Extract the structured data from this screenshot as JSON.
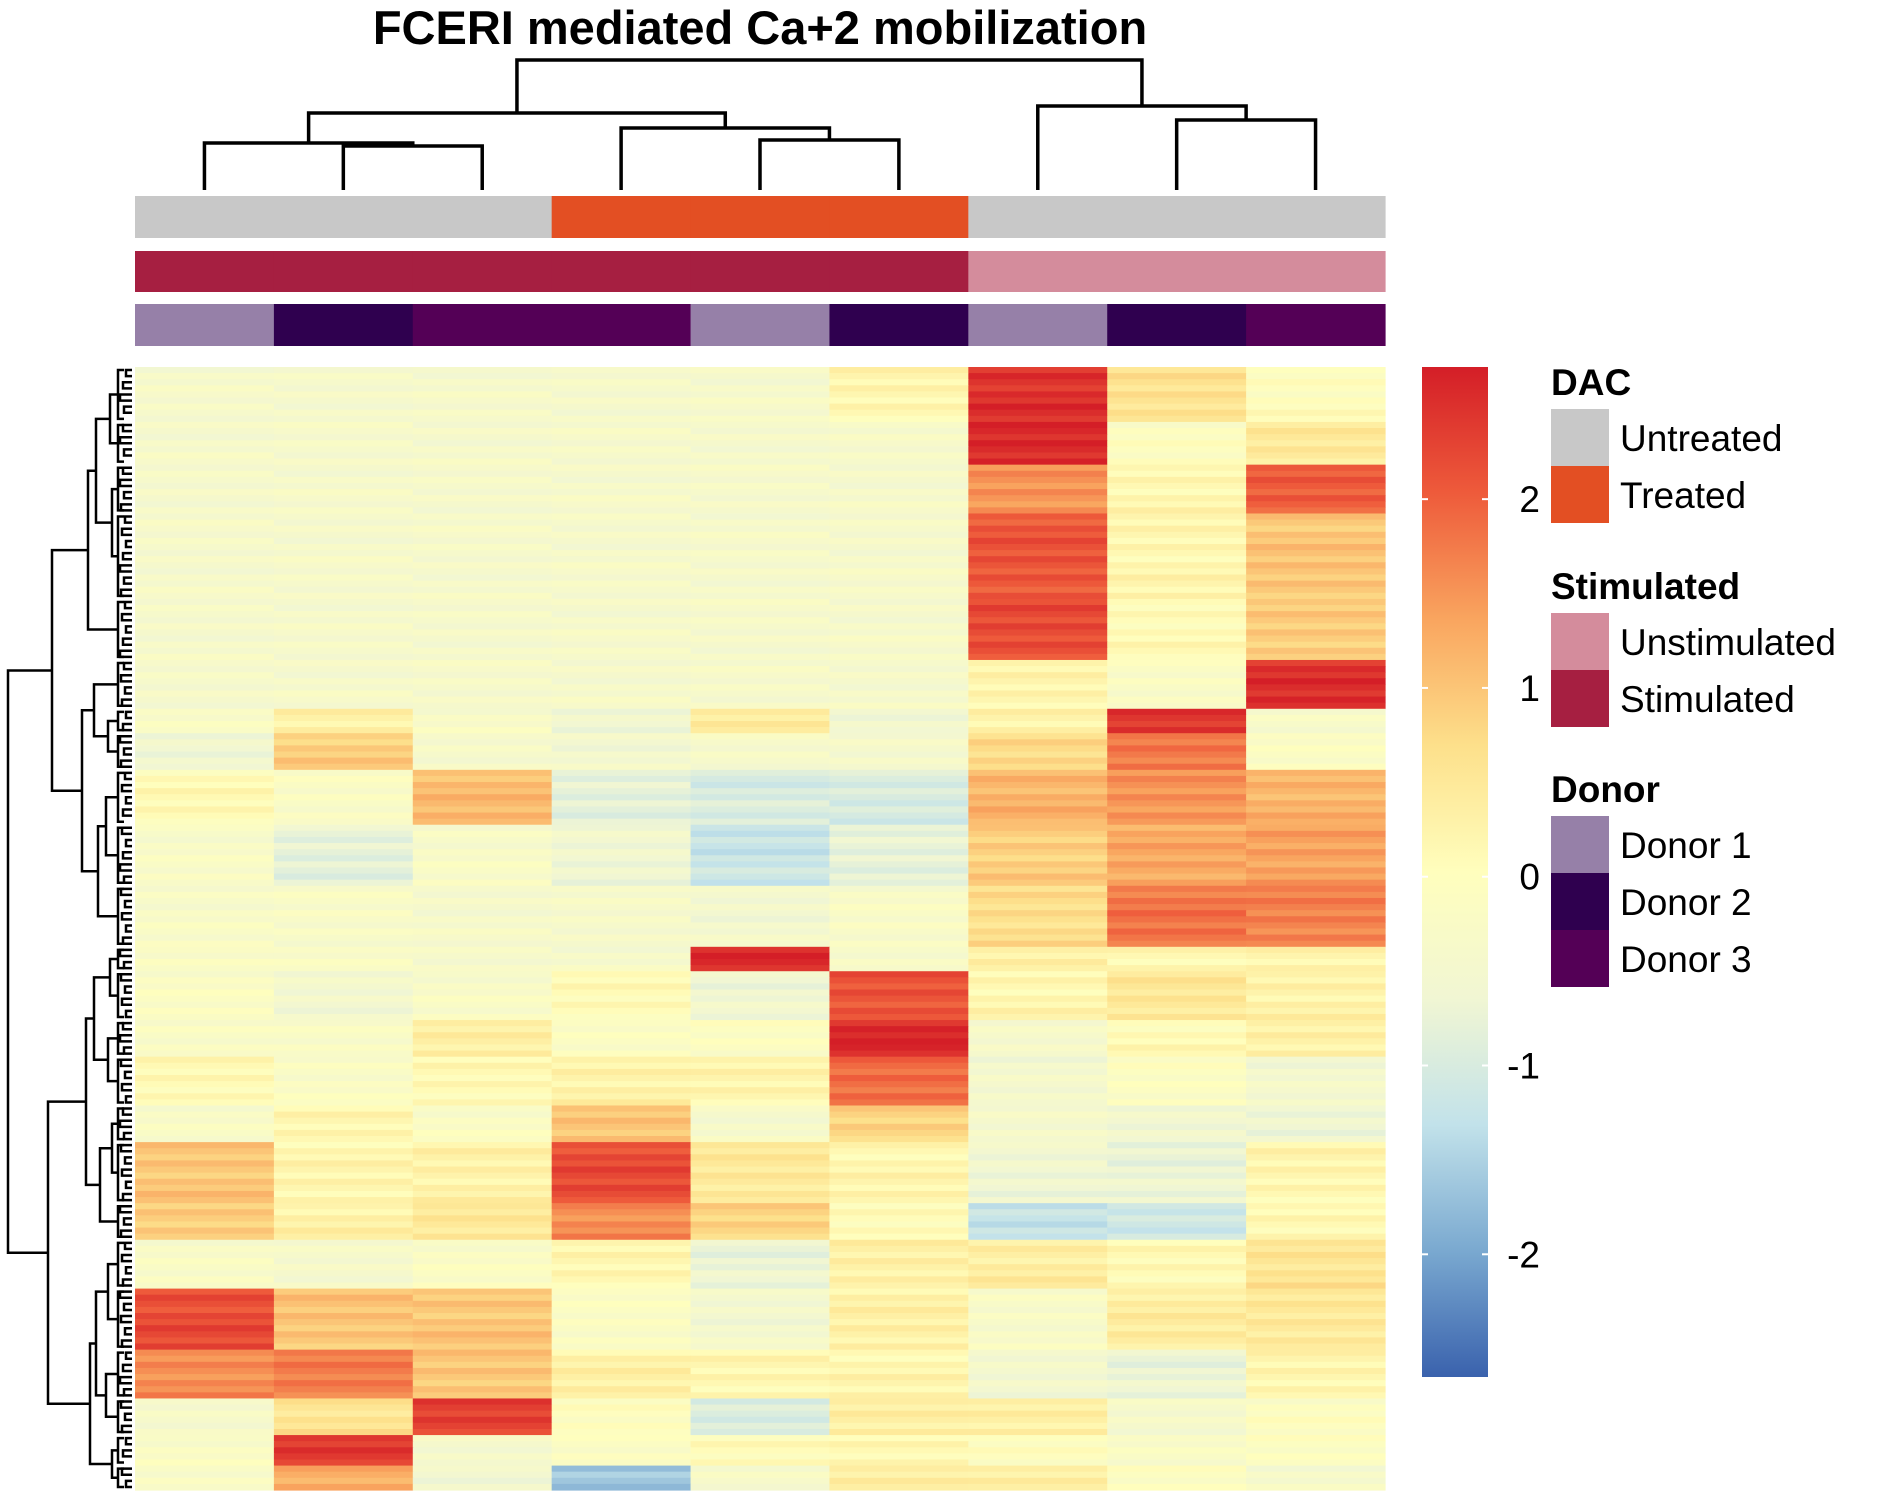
{
  "chart_data": {
    "type": "heatmap",
    "title": "FCERI mediated Ca+2 mobilization",
    "column_annotations": {
      "DAC": [
        "Untreated",
        "Untreated",
        "Untreated",
        "Treated",
        "Treated",
        "Treated",
        "Untreated",
        "Untreated",
        "Untreated"
      ],
      "Stimulated": [
        "Stimulated",
        "Stimulated",
        "Stimulated",
        "Stimulated",
        "Stimulated",
        "Stimulated",
        "Unstimulated",
        "Unstimulated",
        "Unstimulated"
      ],
      "Donor": [
        "Donor 1",
        "Donor 2",
        "Donor 3",
        "Donor 3",
        "Donor 1",
        "Donor 2",
        "Donor 1",
        "Donor 2",
        "Donor 3"
      ]
    },
    "legend": {
      "groups": [
        {
          "title": "DAC",
          "items": [
            {
              "label": "Untreated",
              "color": "#c8c8c8"
            },
            {
              "label": "Treated",
              "color": "#e34f23"
            }
          ]
        },
        {
          "title": "Stimulated",
          "items": [
            {
              "label": "Unstimulated",
              "color": "#d48c9c"
            },
            {
              "label": "Stimulated",
              "color": "#a61f41"
            }
          ]
        },
        {
          "title": "Donor",
          "items": [
            {
              "label": "Donor 1",
              "color": "#9680a8"
            },
            {
              "label": "Donor 2",
              "color": "#2f004f"
            },
            {
              "label": "Donor 3",
              "color": "#540056"
            }
          ]
        }
      ],
      "colorbar": {
        "ticks": [
          {
            "value": 2,
            "label": "2"
          },
          {
            "value": 1,
            "label": "1"
          },
          {
            "value": 0,
            "label": "0"
          },
          {
            "value": -1,
            "label": "-1"
          },
          {
            "value": -2,
            "label": "-2"
          }
        ],
        "range": [
          -2.65,
          2.7
        ],
        "colors": [
          "#3a62ad",
          "#7aa9d0",
          "#c2e2ea",
          "#f1f6d3",
          "#fffebd",
          "#fde08b",
          "#f9a55f",
          "#ee5b3b",
          "#d41e27"
        ]
      }
    },
    "row_blocks": [
      {
        "rows": 9,
        "values": [
          -0.4,
          -0.4,
          -0.4,
          -0.4,
          -0.4,
          0.2,
          2.5,
          0.6,
          0.0
        ]
      },
      {
        "rows": 7,
        "values": [
          -0.4,
          -0.4,
          -0.4,
          -0.4,
          -0.4,
          -0.4,
          2.6,
          -0.1,
          0.5
        ]
      },
      {
        "rows": 8,
        "values": [
          -0.4,
          -0.4,
          -0.4,
          -0.4,
          -0.4,
          -0.4,
          1.5,
          0.2,
          2.0
        ]
      },
      {
        "rows": 14,
        "values": [
          -0.4,
          -0.4,
          -0.4,
          -0.4,
          -0.4,
          -0.4,
          2.1,
          0.2,
          1.0
        ]
      },
      {
        "rows": 10,
        "values": [
          -0.4,
          -0.4,
          -0.4,
          -0.4,
          -0.4,
          -0.4,
          2.2,
          0.1,
          0.9
        ]
      },
      {
        "rows": 8,
        "values": [
          -0.4,
          -0.4,
          -0.4,
          -0.4,
          -0.4,
          -0.4,
          0.2,
          -0.2,
          2.5
        ]
      },
      {
        "rows": 4,
        "values": [
          -0.3,
          0.3,
          -0.3,
          -0.6,
          0.5,
          -0.6,
          0.3,
          2.4,
          -0.3
        ]
      },
      {
        "rows": 6,
        "values": [
          -0.6,
          0.9,
          -0.4,
          -0.5,
          -0.4,
          -0.4,
          0.7,
          1.8,
          -0.2
        ]
      },
      {
        "rows": 9,
        "values": [
          0.1,
          -0.2,
          1.1,
          -0.8,
          -1.0,
          -1.0,
          1.2,
          1.5,
          1.2
        ]
      },
      {
        "rows": 10,
        "values": [
          -0.3,
          -0.8,
          -0.3,
          -0.6,
          -1.2,
          -0.8,
          0.9,
          1.3,
          1.4
        ]
      },
      {
        "rows": 10,
        "values": [
          -0.3,
          -0.3,
          -0.4,
          -0.4,
          -0.5,
          -0.3,
          0.7,
          1.8,
          1.7
        ]
      },
      {
        "rows": 4,
        "values": [
          -0.2,
          -0.3,
          -0.4,
          -0.4,
          2.6,
          -0.3,
          0.3,
          0.2,
          0.2
        ]
      },
      {
        "rows": 8,
        "values": [
          -0.2,
          -0.5,
          -0.3,
          0.1,
          -0.6,
          2.1,
          0.2,
          0.5,
          0.3
        ]
      },
      {
        "rows": 6,
        "values": [
          -0.2,
          -0.3,
          0.4,
          -0.2,
          -0.1,
          2.6,
          -0.4,
          0.1,
          0.3
        ]
      },
      {
        "rows": 8,
        "values": [
          0.1,
          -0.2,
          0.1,
          0.3,
          0.2,
          1.9,
          -0.5,
          -0.1,
          -0.5
        ]
      },
      {
        "rows": 6,
        "values": [
          -0.3,
          0.2,
          -0.2,
          1.0,
          -0.4,
          0.8,
          -0.4,
          -0.6,
          -0.6
        ]
      },
      {
        "rows": 10,
        "values": [
          1.0,
          0.2,
          0.3,
          2.2,
          0.5,
          0.2,
          -0.6,
          -0.7,
          0.2
        ]
      },
      {
        "rows": 6,
        "values": [
          0.9,
          0.3,
          0.5,
          1.6,
          0.8,
          0.1,
          -1.3,
          -1.1,
          0.1
        ]
      },
      {
        "rows": 8,
        "values": [
          -0.3,
          -0.4,
          -0.2,
          0.2,
          -0.7,
          0.3,
          0.4,
          0.1,
          0.6
        ]
      },
      {
        "rows": 10,
        "values": [
          2.2,
          1.0,
          1.0,
          -0.2,
          -0.5,
          0.3,
          -0.3,
          0.4,
          0.5
        ]
      },
      {
        "rows": 8,
        "values": [
          1.6,
          1.7,
          1.0,
          0.3,
          0.2,
          0.2,
          -0.5,
          -0.7,
          0.2
        ]
      },
      {
        "rows": 6,
        "values": [
          -0.4,
          0.6,
          2.3,
          0.0,
          -1.0,
          0.4,
          0.3,
          -0.4,
          -0.1
        ]
      },
      {
        "rows": 5,
        "values": [
          -0.2,
          2.4,
          -0.4,
          -0.2,
          0.1,
          0.1,
          0.0,
          -0.3,
          -0.1
        ]
      },
      {
        "rows": 4,
        "values": [
          -0.3,
          1.3,
          -0.6,
          -1.6,
          -0.4,
          0.4,
          0.3,
          -0.1,
          -0.4
        ]
      }
    ]
  }
}
